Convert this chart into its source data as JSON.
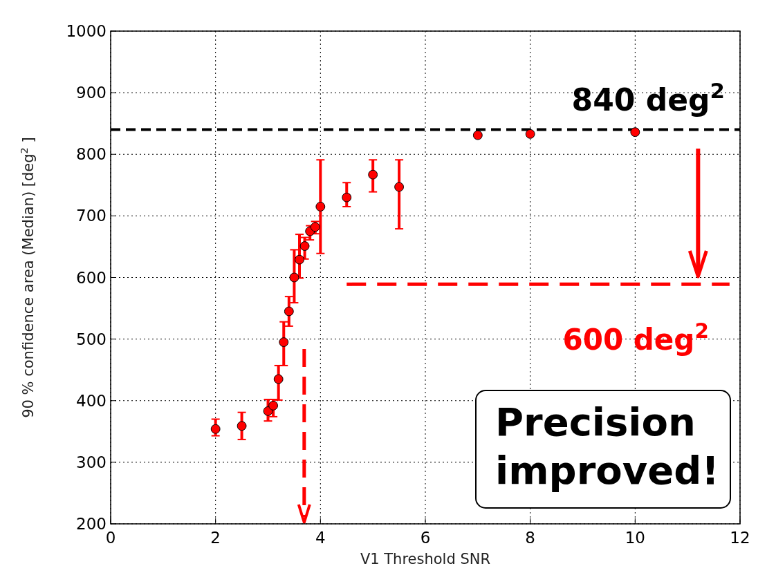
{
  "chart_data": {
    "type": "scatter",
    "xlabel": "V1 Threshold SNR",
    "ylabel": "90 % confidence area (Median) [deg$^{2}$ ]",
    "xlim": [
      0,
      12
    ],
    "xticks": [
      0,
      2,
      4,
      6,
      8,
      10,
      12
    ],
    "ylim": [
      200,
      1000
    ],
    "yticks": [
      200,
      300,
      400,
      500,
      600,
      700,
      800,
      900,
      1000
    ],
    "grid": true,
    "marker": "circle",
    "series": [
      {
        "color": "#ff0000",
        "x": [
          2,
          2.5,
          3,
          3.1,
          3.2,
          3.3,
          3.4,
          3.5,
          3.6,
          3.7,
          3.8,
          3.9,
          4,
          4.5,
          5,
          5.5,
          7,
          8,
          10
        ],
        "values": [
          354,
          359,
          383,
          392,
          435,
          495,
          545,
          600,
          629,
          651,
          675,
          682,
          715,
          730,
          767,
          747,
          831,
          833,
          836
        ],
        "errors": [
          [
            343,
            370
          ],
          [
            337,
            381
          ],
          [
            367,
            402
          ],
          [
            374,
            402
          ],
          [
            401,
            457
          ],
          [
            457,
            528
          ],
          [
            521,
            569
          ],
          [
            559,
            645
          ],
          [
            599,
            670
          ],
          [
            630,
            665
          ],
          [
            661,
            684
          ],
          [
            671,
            691
          ],
          [
            639,
            791
          ],
          [
            715,
            754
          ],
          [
            739,
            791
          ],
          [
            679,
            791
          ],
          null,
          null,
          null
        ]
      },
      {
        "type": "line",
        "name": "600 deg$^{2}$",
        "color": "#ff0000",
        "line_style": "dashed",
        "marker": "none",
        "x": [
          4.5,
          11.8
        ],
        "values": [
          589,
          589
        ]
      }
    ],
    "ref_lines": [
      {
        "axis": "y",
        "value": 840,
        "label": "840 deg$^{2}$",
        "color": "#000000",
        "line_style": "dashed"
      }
    ],
    "annotations": [
      "Precision improved!"
    ]
  }
}
